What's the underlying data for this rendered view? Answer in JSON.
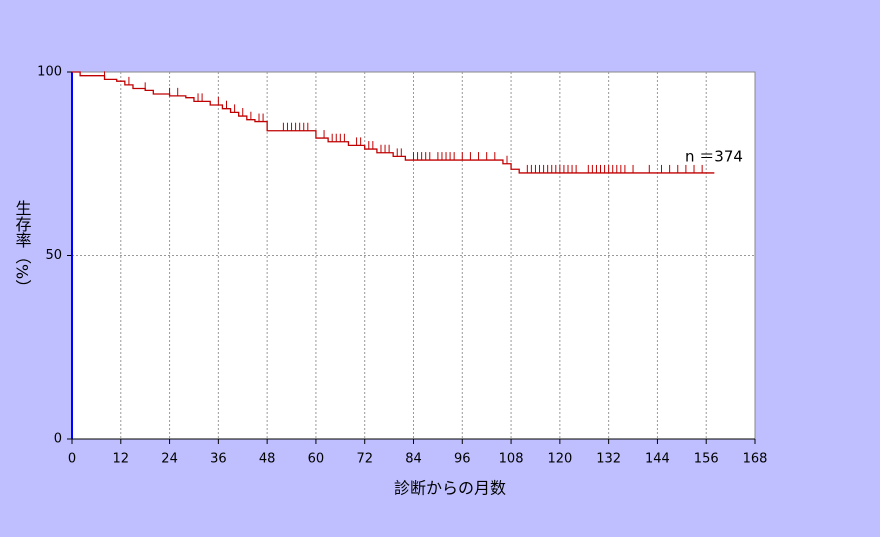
{
  "chart_data": {
    "type": "km",
    "x_label": "診断からの月数",
    "y_label": "生存率（%）",
    "annotation": "n ＝374",
    "xlim": [
      0,
      168
    ],
    "xticks": [
      0,
      12,
      24,
      36,
      48,
      60,
      72,
      84,
      96,
      108,
      120,
      132,
      144,
      156,
      168
    ],
    "ylim": [
      0,
      100
    ],
    "yticks": [
      0,
      50,
      100
    ],
    "grid": true,
    "color": "#c00000",
    "x": [
      0,
      2,
      8,
      11,
      13,
      15,
      18,
      20,
      24,
      28,
      30,
      34,
      37,
      39,
      41,
      43,
      45,
      48,
      60,
      63,
      68,
      72,
      75,
      79,
      82,
      106,
      108,
      110,
      158
    ],
    "values": [
      100,
      99,
      98,
      97.5,
      96.5,
      95.5,
      95,
      94,
      93.5,
      93,
      92,
      91,
      90,
      89,
      88,
      87,
      86.5,
      84,
      82,
      81,
      80,
      79,
      78,
      77,
      76,
      75,
      73.5,
      72.5,
      72.5
    ],
    "censor_x": [
      8,
      14,
      18,
      24,
      26,
      31,
      32,
      36,
      38,
      40,
      42,
      44,
      46,
      47,
      52,
      53,
      54,
      55,
      56,
      57,
      58,
      62,
      64,
      65,
      66,
      67,
      70,
      71,
      73,
      74,
      76,
      77,
      78,
      80,
      81,
      84,
      85,
      86,
      87,
      88,
      90,
      91,
      92,
      93,
      94,
      96,
      98,
      100,
      102,
      104,
      107,
      112,
      113,
      114,
      115,
      116,
      117,
      118,
      119,
      120,
      121,
      122,
      123,
      124,
      127,
      128,
      129,
      130,
      131,
      132,
      133,
      134,
      135,
      136,
      138,
      142,
      145,
      147,
      149,
      151,
      153,
      155
    ],
    "censor_values": [
      98,
      96.5,
      95,
      93.5,
      93.5,
      92,
      92,
      91,
      90,
      89,
      88,
      87,
      86.5,
      86.5,
      84,
      84,
      84,
      84,
      84,
      84,
      84,
      82,
      81,
      81,
      81,
      81,
      80,
      80,
      79,
      79,
      78,
      78,
      78,
      77,
      77,
      76,
      76,
      76,
      76,
      76,
      76,
      76,
      76,
      76,
      76,
      76,
      76,
      76,
      76,
      76,
      75,
      72.5,
      72.5,
      72.5,
      72.5,
      72.5,
      72.5,
      72.5,
      72.5,
      72.5,
      72.5,
      72.5,
      72.5,
      72.5,
      72.5,
      72.5,
      72.5,
      72.5,
      72.5,
      72.5,
      72.5,
      72.5,
      72.5,
      72.5,
      72.5,
      72.5,
      72.5,
      72.5,
      72.5,
      72.5,
      72.5,
      72.5
    ]
  }
}
